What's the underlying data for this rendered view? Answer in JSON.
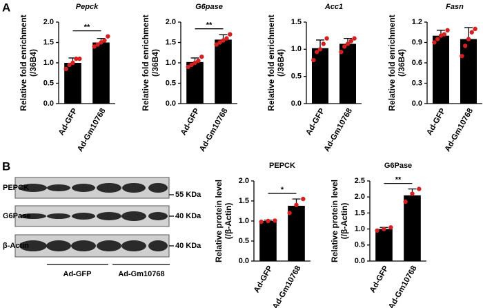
{
  "panel_labels": [
    "A",
    "B"
  ],
  "blot": {
    "rows": [
      {
        "label": "PEPCK",
        "size": "55 KDa"
      },
      {
        "label": "G6Pase",
        "size": "40 KDa"
      },
      {
        "label": "β-Actin",
        "size": "40 KDa"
      }
    ],
    "groups": [
      "Ad-GFP",
      "Ad-Gm10768"
    ]
  },
  "chart_data": [
    {
      "type": "bar",
      "title": "Pepck",
      "ylabel": [
        "Relative fold enrichment",
        "(/36B4)"
      ],
      "categories": [
        "Ad-GFP",
        "Ad-Gm10768"
      ],
      "values": [
        1.0,
        1.5
      ],
      "errors": [
        0.12,
        0.1
      ],
      "points": [
        [
          0.85,
          0.95,
          1.0,
          1.1,
          1.1
        ],
        [
          1.4,
          1.45,
          1.5,
          1.55,
          1.65
        ]
      ],
      "significance": "**",
      "color": "#000000",
      "point_color": "#d42020",
      "ylim": [
        0,
        2
      ],
      "yticks": [
        {
          "value": 0,
          "label": "0.0"
        },
        0.5,
        {
          "value": 1,
          "label": "1.0"
        },
        1.5,
        {
          "value": 2,
          "label": "2.0"
        }
      ]
    },
    {
      "type": "bar",
      "title": "G6pase",
      "ylabel": [
        "Relative fold enrichment",
        "(/36B4)"
      ],
      "categories": [
        "Ad-GFP",
        "Ad-Gm10768"
      ],
      "values": [
        1.02,
        1.57
      ],
      "errors": [
        0.1,
        0.12
      ],
      "points": [
        [
          0.9,
          0.95,
          1.0,
          1.05,
          1.15
        ],
        [
          1.45,
          1.5,
          1.55,
          1.6,
          1.7
        ]
      ],
      "significance": "**",
      "color": "#000000",
      "point_color": "#d42020",
      "ylim": [
        0,
        2
      ],
      "yticks": [
        {
          "value": 0,
          "label": "0.0"
        },
        0.5,
        {
          "value": 1,
          "label": "1.0"
        },
        1.5,
        {
          "value": 2,
          "label": "2.0"
        }
      ]
    },
    {
      "type": "bar",
      "title": "Acc1",
      "ylabel": [
        "Relative fold enrichment",
        "(/36B4)"
      ],
      "categories": [
        "Ad-GFP",
        "Ad-Gm10768"
      ],
      "values": [
        1.02,
        1.1
      ],
      "errors": [
        0.15,
        0.1
      ],
      "points": [
        [
          0.8,
          0.95,
          1.0,
          1.1,
          1.2
        ],
        [
          0.95,
          1.05,
          1.1,
          1.15,
          1.2
        ]
      ],
      "color": "#000000",
      "point_color": "#d42020",
      "ylim": [
        0,
        1.5
      ],
      "yticks": [
        {
          "value": 0,
          "label": "0.0"
        },
        0.5,
        {
          "value": 1,
          "label": "1.0"
        },
        1.5
      ]
    },
    {
      "type": "bar",
      "title": "Fasn",
      "ylabel": [
        "Relative fold enrichment",
        "(/36B4)"
      ],
      "categories": [
        "Ad-GFP",
        "Ad-Gm10768"
      ],
      "values": [
        1.0,
        0.95
      ],
      "errors": [
        0.08,
        0.17
      ],
      "points": [
        [
          0.9,
          0.95,
          1.0,
          1.02,
          1.08
        ],
        [
          0.7,
          0.85,
          0.95,
          1.05,
          1.1
        ]
      ],
      "color": "#000000",
      "point_color": "#d42020",
      "ylim": [
        0,
        1.2
      ],
      "yticks": [
        {
          "value": 0,
          "label": "0.0"
        },
        0.3,
        0.6,
        0.9,
        1.2
      ]
    },
    {
      "type": "bar",
      "title": "PEPCK",
      "ylabel": [
        "Relative protein level",
        "(/β-Actin)"
      ],
      "categories": [
        "Ad-GFP",
        "Ad-Gm10768"
      ],
      "values": [
        1.0,
        1.38
      ],
      "errors": [
        0.02,
        0.17
      ],
      "points": [
        [
          0.98,
          1.0,
          1.01
        ],
        [
          1.2,
          1.4,
          1.55
        ]
      ],
      "significance": "*",
      "color": "#000000",
      "point_color": "#d42020",
      "ylim": [
        0,
        2
      ],
      "yticks": [
        {
          "value": 0,
          "label": "0.0"
        },
        0.5,
        {
          "value": 1,
          "label": "1.0"
        },
        1.5,
        {
          "value": 2,
          "label": "2.0"
        }
      ]
    },
    {
      "type": "bar",
      "title": "G6Pase",
      "ylabel": [
        "Relative protein level",
        "(/β-Actin)"
      ],
      "categories": [
        "Ad-GFP",
        "Ad-Gm10768"
      ],
      "values": [
        1.0,
        2.05
      ],
      "errors": [
        0.05,
        0.2
      ],
      "points": [
        [
          0.95,
          1.0,
          1.05
        ],
        [
          1.85,
          2.1,
          2.25
        ]
      ],
      "significance": "**",
      "color": "#000000",
      "point_color": "#d42020",
      "ylim": [
        0,
        2.5
      ],
      "yticks": [
        {
          "value": 0,
          "label": "0.0"
        },
        0.5,
        {
          "value": 1,
          "label": "1.0"
        },
        1.5,
        {
          "value": 2,
          "label": "2.0"
        },
        2.5
      ]
    }
  ]
}
